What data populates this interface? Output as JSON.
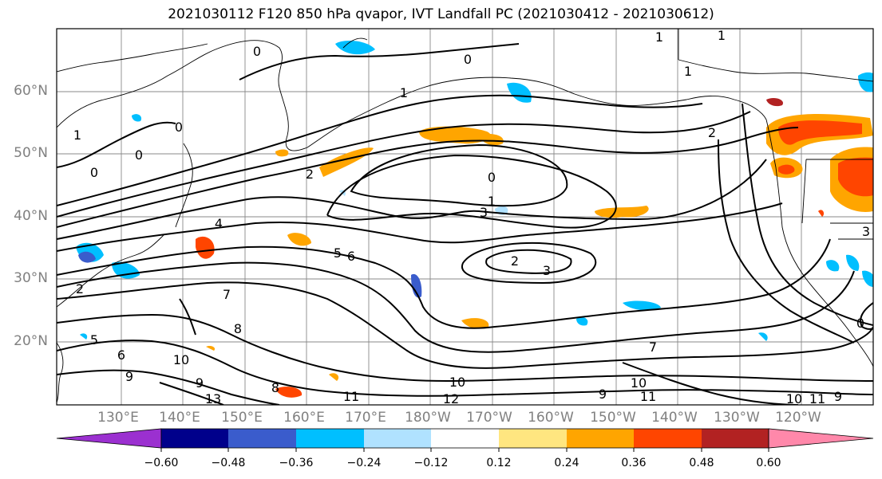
{
  "title": "2021030112 F120 850 hPa qvapor, IVT Landfall PC (2021030412 - 2021030612)",
  "lat_labels": [
    "60°N",
    "50°N",
    "40°N",
    "30°N",
    "20°N"
  ],
  "lon_labels": [
    "130°E",
    "140°E",
    "150°E",
    "160°E",
    "170°E",
    "180°W",
    "170°W",
    "160°W",
    "150°W",
    "140°W",
    "130°W",
    "120°W"
  ],
  "colorbar": {
    "colors": [
      "#9b30d0",
      "#00008b",
      "#3a5ccc",
      "#00bfff",
      "#b0e2ff",
      "#ffffff",
      "#ffe680",
      "#ffa500",
      "#ff4500",
      "#b22222",
      "#ff88aa"
    ],
    "tick_labels": [
      "−0.60",
      "−0.48",
      "−0.36",
      "−0.24",
      "−0.12",
      "0.12",
      "0.24",
      "0.36",
      "0.48",
      "0.60"
    ]
  },
  "contour_labels": [
    "0",
    "1",
    "2",
    "3",
    "4",
    "5",
    "6",
    "7",
    "8",
    "9",
    "10",
    "11",
    "12",
    "13"
  ],
  "shown_contour_labels": [
    "0",
    "1",
    "1",
    "0",
    "2",
    "1",
    "0",
    "1",
    "0",
    "1",
    "0",
    "2",
    "0",
    "1",
    "3",
    "4",
    "5",
    "6",
    "2",
    "3",
    "5",
    "6",
    "7",
    "8",
    "9",
    "10",
    "9",
    "8",
    "10",
    "11",
    "12",
    "10",
    "9",
    "11",
    "10",
    "11",
    "9",
    "13",
    "0",
    "3",
    "2",
    "7"
  ]
}
